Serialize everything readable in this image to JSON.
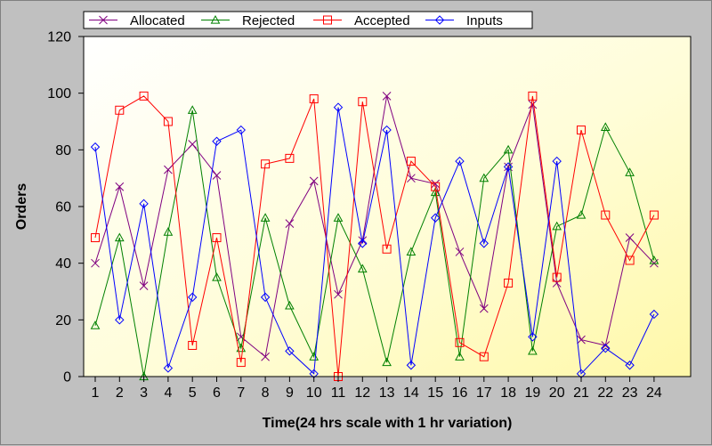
{
  "chart_data": {
    "type": "line",
    "xlabel": "Time(24 hrs scale with 1 hr variation)",
    "ylabel": "Orders",
    "ylim": [
      0,
      120
    ],
    "yticks": [
      0,
      20,
      40,
      60,
      80,
      100,
      120
    ],
    "x": [
      1,
      2,
      3,
      4,
      5,
      6,
      7,
      8,
      9,
      10,
      11,
      12,
      13,
      14,
      15,
      16,
      17,
      18,
      19,
      20,
      21,
      22,
      23,
      24
    ],
    "legend_position": "top",
    "grid": false,
    "series": [
      {
        "name": "Allocated",
        "color": "#800080",
        "marker": "cross",
        "values": [
          40,
          67,
          32,
          73,
          82,
          71,
          14,
          7,
          54,
          69,
          29,
          48,
          99,
          70,
          68,
          44,
          24,
          74,
          96,
          33,
          13,
          11,
          49,
          40
        ]
      },
      {
        "name": "Rejected",
        "color": "#008000",
        "marker": "triangle",
        "values": [
          18,
          49,
          0,
          51,
          94,
          35,
          10,
          56,
          25,
          7,
          56,
          38,
          5,
          44,
          65,
          7,
          70,
          80,
          9,
          53,
          57,
          88,
          72,
          41
        ]
      },
      {
        "name": "Accepted",
        "color": "#ff0000",
        "marker": "square",
        "values": [
          49,
          94,
          99,
          90,
          11,
          49,
          5,
          75,
          77,
          98,
          0,
          97,
          45,
          76,
          67,
          12,
          7,
          33,
          99,
          35,
          87,
          57,
          41,
          57
        ]
      },
      {
        "name": "Inputs",
        "color": "#0000ff",
        "marker": "diamond",
        "values": [
          81,
          20,
          61,
          3,
          28,
          83,
          87,
          28,
          9,
          1,
          95,
          47,
          87,
          4,
          56,
          76,
          47,
          74,
          14,
          76,
          1,
          10,
          4,
          22
        ]
      }
    ]
  }
}
